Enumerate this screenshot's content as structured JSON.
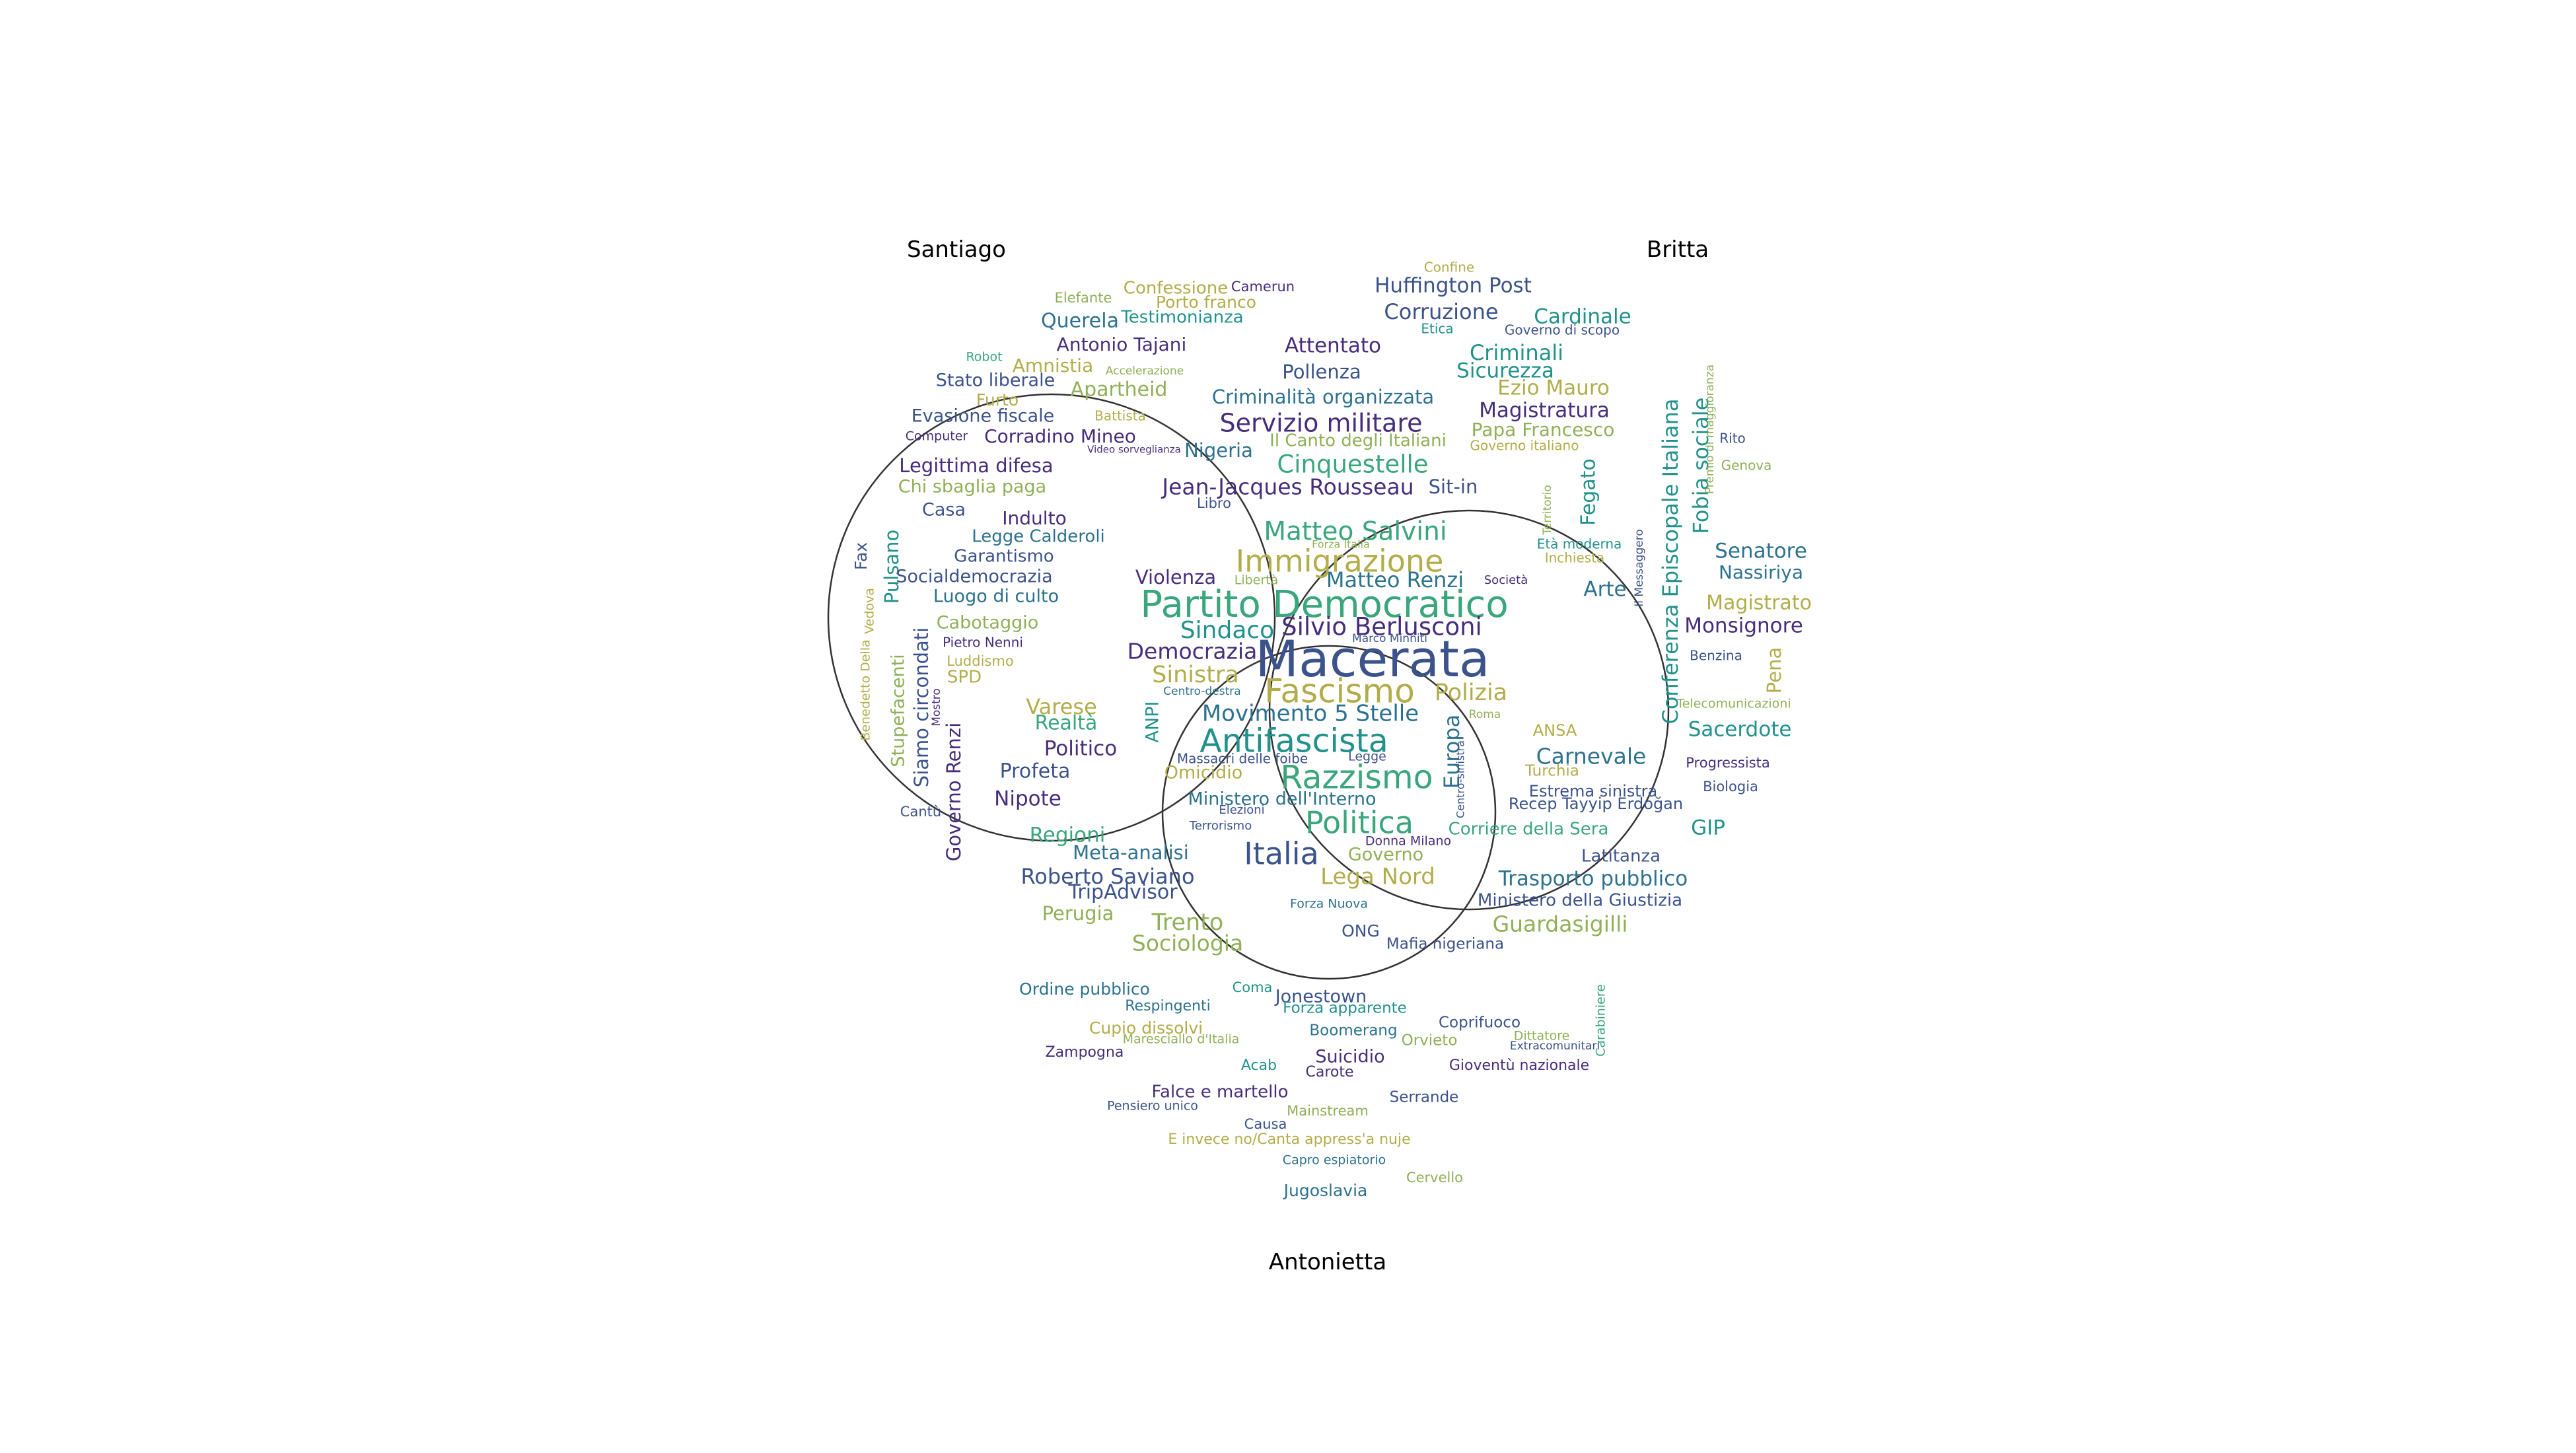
{
  "sets": [
    {
      "name": "Santiago"
    },
    {
      "name": "Britta"
    },
    {
      "name": "Antonietta"
    }
  ],
  "palette": {
    "outline": "#333333",
    "dark_purple": "#472d7b",
    "indigo": "#3b528b",
    "blue": "#2c728e",
    "teal": "#21918c",
    "green": "#3aa67b",
    "olive": "#8fb056",
    "khaki": "#b2ad4a"
  },
  "words": [
    {
      "text": "Confessione",
      "color": "khaki"
    },
    {
      "text": "Camerun",
      "color": "dark_purple"
    },
    {
      "text": "Elefante",
      "color": "olive"
    },
    {
      "text": "Porto franco",
      "color": "khaki"
    },
    {
      "text": "Querela",
      "color": "blue"
    },
    {
      "text": "Testimonianza",
      "color": "teal"
    },
    {
      "text": "Antonio Tajani",
      "color": "dark_purple"
    },
    {
      "text": "Robot",
      "color": "green"
    },
    {
      "text": "Amnistia",
      "color": "khaki"
    },
    {
      "text": "Accelerazione",
      "color": "olive"
    },
    {
      "text": "Stato liberale",
      "color": "indigo"
    },
    {
      "text": "Apartheid",
      "color": "olive"
    },
    {
      "text": "Furto",
      "color": "khaki"
    },
    {
      "text": "Battista",
      "color": "khaki"
    },
    {
      "text": "Evasione fiscale",
      "color": "indigo"
    },
    {
      "text": "Computer",
      "color": "dark_purple"
    },
    {
      "text": "Corradino Mineo",
      "color": "dark_purple"
    },
    {
      "text": "Video sorveglianza",
      "color": "dark_purple"
    },
    {
      "text": "Legittima difesa",
      "color": "dark_purple"
    },
    {
      "text": "Chi sbaglia paga",
      "color": "olive"
    },
    {
      "text": "Casa",
      "color": "indigo"
    },
    {
      "text": "Indulto",
      "color": "dark_purple"
    },
    {
      "text": "Legge Calderoli",
      "color": "blue"
    },
    {
      "text": "Fax",
      "color": "indigo"
    },
    {
      "text": "Pulsano",
      "color": "teal"
    },
    {
      "text": "Garantismo",
      "color": "indigo"
    },
    {
      "text": "Socialdemocrazia",
      "color": "indigo"
    },
    {
      "text": "Luogo di culto",
      "color": "blue"
    },
    {
      "text": "Vedova",
      "color": "khaki"
    },
    {
      "text": "Cabotaggio",
      "color": "olive"
    },
    {
      "text": "Pietro Nenni",
      "color": "dark_purple"
    },
    {
      "text": "Benedetto Della",
      "color": "khaki"
    },
    {
      "text": "Stupefacenti",
      "color": "olive"
    },
    {
      "text": "Siamo circondati",
      "color": "indigo"
    },
    {
      "text": "Mostro",
      "color": "dark_purple"
    },
    {
      "text": "Luddismo",
      "color": "khaki"
    },
    {
      "text": "SPD",
      "color": "khaki"
    },
    {
      "text": "Governo Renzi",
      "color": "dark_purple"
    },
    {
      "text": "Cantù",
      "color": "indigo"
    },
    {
      "text": "Confine",
      "color": "khaki"
    },
    {
      "text": "Huffington Post",
      "color": "indigo"
    },
    {
      "text": "Corruzione",
      "color": "indigo"
    },
    {
      "text": "Cardinale",
      "color": "teal"
    },
    {
      "text": "Etica",
      "color": "teal"
    },
    {
      "text": "Governo di scopo",
      "color": "indigo"
    },
    {
      "text": "Criminali",
      "color": "teal"
    },
    {
      "text": "Sicurezza",
      "color": "teal"
    },
    {
      "text": "Ezio Mauro",
      "color": "khaki"
    },
    {
      "text": "Magistratura",
      "color": "dark_purple"
    },
    {
      "text": "Papa Francesco",
      "color": "olive"
    },
    {
      "text": "Governo italiano",
      "color": "khaki"
    },
    {
      "text": "Conferenza Episcopale Italiana",
      "color": "teal"
    },
    {
      "text": "Fobia sociale",
      "color": "teal"
    },
    {
      "text": "Premio di maggioranza",
      "color": "olive"
    },
    {
      "text": "Rito",
      "color": "indigo"
    },
    {
      "text": "Genova",
      "color": "olive"
    },
    {
      "text": "Fegato",
      "color": "teal"
    },
    {
      "text": "Territorio",
      "color": "olive"
    },
    {
      "text": "Età moderna",
      "color": "teal"
    },
    {
      "text": "Inchiesta",
      "color": "khaki"
    },
    {
      "text": "Il Messaggero",
      "color": "indigo"
    },
    {
      "text": "Senatore",
      "color": "blue"
    },
    {
      "text": "Nassiriya",
      "color": "blue"
    },
    {
      "text": "Arte",
      "color": "blue"
    },
    {
      "text": "Magistrato",
      "color": "khaki"
    },
    {
      "text": "Monsignore",
      "color": "dark_purple"
    },
    {
      "text": "Benzina",
      "color": "indigo"
    },
    {
      "text": "Pena",
      "color": "khaki"
    },
    {
      "text": "Telecomunicazioni",
      "color": "olive"
    },
    {
      "text": "Sacerdote",
      "color": "teal"
    },
    {
      "text": "Progressista",
      "color": "dark_purple"
    },
    {
      "text": "Biologia",
      "color": "indigo"
    },
    {
      "text": "GIP",
      "color": "teal"
    },
    {
      "text": "Attentato",
      "color": "dark_purple"
    },
    {
      "text": "Pollenza",
      "color": "indigo"
    },
    {
      "text": "Criminalità organizzata",
      "color": "blue"
    },
    {
      "text": "Servizio militare",
      "color": "dark_purple"
    },
    {
      "text": "Nigeria",
      "color": "blue"
    },
    {
      "text": "Il Canto degli Italiani",
      "color": "olive"
    },
    {
      "text": "Cinquestelle",
      "color": "green"
    },
    {
      "text": "Jean-Jacques Rousseau",
      "color": "dark_purple"
    },
    {
      "text": "Sit-in",
      "color": "indigo"
    },
    {
      "text": "Libro",
      "color": "indigo"
    },
    {
      "text": "Matteo Salvini",
      "color": "green"
    },
    {
      "text": "Forza Italia",
      "color": "olive"
    },
    {
      "text": "Immigrazione",
      "color": "khaki"
    },
    {
      "text": "Violenza",
      "color": "dark_purple"
    },
    {
      "text": "Libertà",
      "color": "olive"
    },
    {
      "text": "Matteo Renzi",
      "color": "blue"
    },
    {
      "text": "Società",
      "color": "dark_purple"
    },
    {
      "text": "Partito Democratico",
      "color": "green"
    },
    {
      "text": "Sindaco",
      "color": "teal"
    },
    {
      "text": "Silvio Berlusconi",
      "color": "dark_purple"
    },
    {
      "text": "Marco Minniti",
      "color": "indigo"
    },
    {
      "text": "Democrazia",
      "color": "dark_purple"
    },
    {
      "text": "Macerata",
      "color": "indigo"
    },
    {
      "text": "Sinistra",
      "color": "khaki"
    },
    {
      "text": "Centro-destra",
      "color": "blue"
    },
    {
      "text": "Fascismo",
      "color": "khaki"
    },
    {
      "text": "Polizia",
      "color": "khaki"
    },
    {
      "text": "ANPI",
      "color": "teal"
    },
    {
      "text": "Movimento 5 Stelle",
      "color": "blue"
    },
    {
      "text": "Roma",
      "color": "olive"
    },
    {
      "text": "Europa",
      "color": "blue"
    },
    {
      "text": "Antifascista",
      "color": "teal"
    },
    {
      "text": "Massacri delle foibe",
      "color": "indigo"
    },
    {
      "text": "Legge",
      "color": "indigo"
    },
    {
      "text": "Centro-sinistra",
      "color": "indigo"
    },
    {
      "text": "Omicidio",
      "color": "khaki"
    },
    {
      "text": "Razzismo",
      "color": "green"
    },
    {
      "text": "Ministero dell'Interno",
      "color": "blue"
    },
    {
      "text": "Elezioni",
      "color": "indigo"
    },
    {
      "text": "Terrorismo",
      "color": "indigo"
    },
    {
      "text": "Politica",
      "color": "green"
    },
    {
      "text": "Donna Milano",
      "color": "dark_purple"
    },
    {
      "text": "Italia",
      "color": "indigo"
    },
    {
      "text": "Governo",
      "color": "olive"
    },
    {
      "text": "Lega Nord",
      "color": "khaki"
    },
    {
      "text": "Forza Nuova",
      "color": "blue"
    },
    {
      "text": "Varese",
      "color": "khaki"
    },
    {
      "text": "Realtà",
      "color": "green"
    },
    {
      "text": "Politico",
      "color": "dark_purple"
    },
    {
      "text": "Profeta",
      "color": "indigo"
    },
    {
      "text": "Nipote",
      "color": "dark_purple"
    },
    {
      "text": "Regioni",
      "color": "green"
    },
    {
      "text": "Meta-analisi",
      "color": "blue"
    },
    {
      "text": "Roberto Saviano",
      "color": "indigo"
    },
    {
      "text": "TripAdvisor",
      "color": "indigo"
    },
    {
      "text": "Perugia",
      "color": "olive"
    },
    {
      "text": "Trento",
      "color": "olive"
    },
    {
      "text": "Sociologia",
      "color": "olive"
    },
    {
      "text": "ANSA",
      "color": "khaki"
    },
    {
      "text": "Carnevale",
      "color": "blue"
    },
    {
      "text": "Turchia",
      "color": "khaki"
    },
    {
      "text": "Estrema sinistra",
      "color": "indigo"
    },
    {
      "text": "Recep Tayyip Erdoğan",
      "color": "indigo"
    },
    {
      "text": "Corriere della Sera",
      "color": "green"
    },
    {
      "text": "Latitanza",
      "color": "indigo"
    },
    {
      "text": "Trasporto pubblico",
      "color": "blue"
    },
    {
      "text": "Ministero della Giustizia",
      "color": "indigo"
    },
    {
      "text": "Guardasigilli",
      "color": "olive"
    },
    {
      "text": "ONG",
      "color": "indigo"
    },
    {
      "text": "Mafia nigeriana",
      "color": "indigo"
    },
    {
      "text": "Ordine pubblico",
      "color": "blue"
    },
    {
      "text": "Coma",
      "color": "teal"
    },
    {
      "text": "Jonestown",
      "color": "indigo"
    },
    {
      "text": "Respingenti",
      "color": "blue"
    },
    {
      "text": "Forza apparente",
      "color": "teal"
    },
    {
      "text": "Carabiniere",
      "color": "green"
    },
    {
      "text": "Cupio dissolvi",
      "color": "khaki"
    },
    {
      "text": "Boomerang",
      "color": "blue"
    },
    {
      "text": "Coprifuoco",
      "color": "indigo"
    },
    {
      "text": "Maresciallo d'Italia",
      "color": "olive"
    },
    {
      "text": "Orvieto",
      "color": "olive"
    },
    {
      "text": "Dittatore",
      "color": "olive"
    },
    {
      "text": "Extracomunitari",
      "color": "indigo"
    },
    {
      "text": "Zampogna",
      "color": "dark_purple"
    },
    {
      "text": "Suicidio",
      "color": "dark_purple"
    },
    {
      "text": "Acab",
      "color": "teal"
    },
    {
      "text": "Carote",
      "color": "dark_purple"
    },
    {
      "text": "Gioventù nazionale",
      "color": "dark_purple"
    },
    {
      "text": "Falce e martello",
      "color": "dark_purple"
    },
    {
      "text": "Serrande",
      "color": "indigo"
    },
    {
      "text": "Pensiero unico",
      "color": "indigo"
    },
    {
      "text": "Mainstream",
      "color": "olive"
    },
    {
      "text": "Causa",
      "color": "indigo"
    },
    {
      "text": "E invece no/Canta appress'a nuje",
      "color": "khaki"
    },
    {
      "text": "Capro espiatorio",
      "color": "blue"
    },
    {
      "text": "Cervello",
      "color": "olive"
    },
    {
      "text": "Jugoslavia",
      "color": "blue"
    }
  ]
}
